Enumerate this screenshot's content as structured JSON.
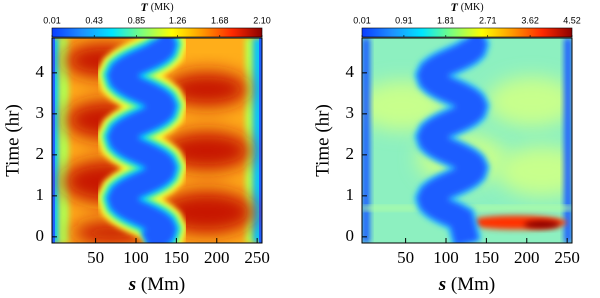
{
  "chart_data": [
    {
      "type": "heatmap",
      "colorbar": {
        "label_symbol": "T",
        "label_unit": "(MK)",
        "lim": [
          0.01,
          2.1
        ],
        "ticks": [
          0.01,
          0.43,
          0.85,
          1.26,
          1.68,
          {
            "value": 2.1,
            "label": "2.10"
          }
        ]
      },
      "colormap": [
        "#0a3cff",
        "#1e90ff",
        "#00e5ff",
        "#7cff7c",
        "#ffff00",
        "#ff9a00",
        "#ff2a00",
        "#8b0000"
      ],
      "xlabel": {
        "symbol": "s",
        "unit": "(Mm)"
      },
      "ylabel": "Time (hr)",
      "xlim": [
        -4,
        256
      ],
      "xticks": [
        50,
        100,
        150,
        200,
        250
      ],
      "ylim": [
        -0.15,
        4.85
      ],
      "yticks": [
        0,
        1,
        2,
        3,
        4
      ]
    },
    {
      "type": "heatmap",
      "colorbar": {
        "label_symbol": "T",
        "label_unit": "(MK)",
        "lim": [
          0.01,
          4.52
        ],
        "ticks": [
          0.01,
          0.91,
          1.81,
          2.71,
          3.62,
          4.52
        ]
      },
      "colormap": [
        "#0a3cff",
        "#1e90ff",
        "#00e5ff",
        "#7cff7c",
        "#ffff00",
        "#ff9a00",
        "#ff2a00",
        "#8b0000"
      ],
      "xlabel": {
        "symbol": "s",
        "unit": "(Mm)"
      },
      "ylabel": "Time (hr)",
      "xlim": [
        -4,
        256
      ],
      "xticks": [
        50,
        100,
        150,
        200,
        250
      ],
      "ylim": [
        -0.15,
        4.85
      ],
      "yticks": [
        0,
        1,
        2,
        3,
        4
      ]
    }
  ]
}
